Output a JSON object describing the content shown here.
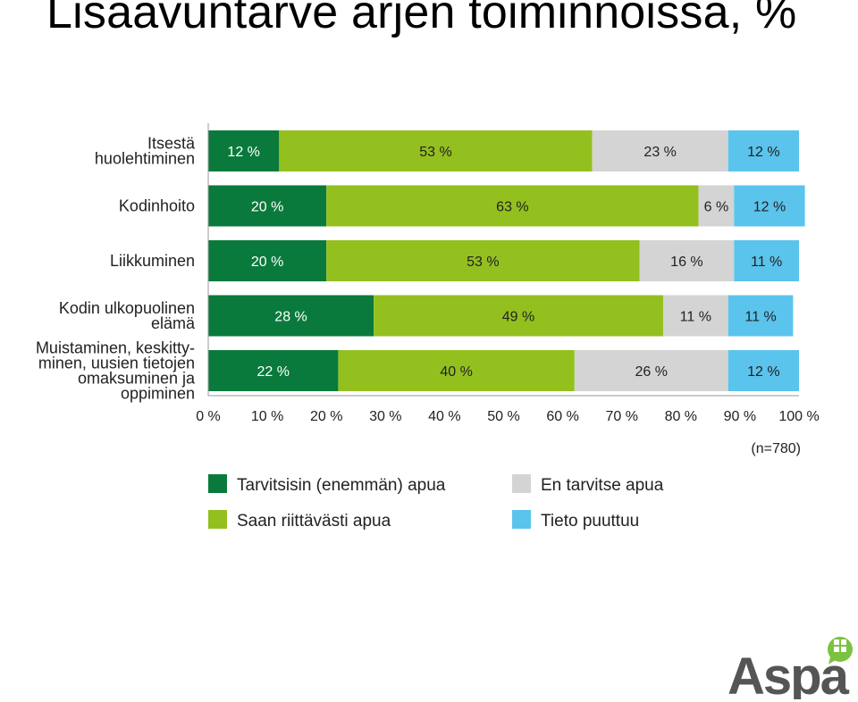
{
  "page": {
    "title": "Lisäavuntarve arjen toiminnoissa, %"
  },
  "chart_data": {
    "type": "bar",
    "orientation": "horizontal",
    "stacked": true,
    "percent_stacked": true,
    "categories": [
      [
        "Itsestä",
        "huolehtiminen"
      ],
      [
        "Kodinhoito"
      ],
      [
        "Liikkuminen"
      ],
      [
        "Kodin ulkopuolinen",
        "elämä"
      ],
      [
        "Muistaminen, keskitty-",
        "minen, uusien tietojen",
        "omaksuminen ja",
        "oppiminen"
      ]
    ],
    "series": [
      {
        "name": "Tarvitsisin (enemmän) apua",
        "color": "#0a7a3c",
        "text_color": "#ffffff",
        "values": [
          12,
          20,
          20,
          28,
          22
        ]
      },
      {
        "name": "Saan riittävästi apua",
        "color": "#93c01f",
        "text_color": "#222222",
        "values": [
          53,
          63,
          53,
          49,
          40
        ]
      },
      {
        "name": "En tarvitse apua",
        "color": "#d4d4d4",
        "text_color": "#222222",
        "values": [
          23,
          6,
          16,
          11,
          26
        ]
      },
      {
        "name": "Tieto puuttuu",
        "color": "#5bc4ec",
        "text_color": "#222222",
        "values": [
          12,
          12,
          11,
          11,
          12
        ]
      }
    ],
    "value_suffix": " %",
    "x_ticks": [
      "0 %",
      "10 %",
      "20 %",
      "30 %",
      "40 %",
      "50 %",
      "60 %",
      "70 %",
      "80 %",
      "90 %",
      "100 %"
    ],
    "xlim": [
      0,
      100
    ],
    "grid": false,
    "legend_position": "bottom",
    "annotation": "(n=780)"
  },
  "logo": {
    "text": "Aspa",
    "color": "#555555",
    "accent": "#7cc242"
  }
}
